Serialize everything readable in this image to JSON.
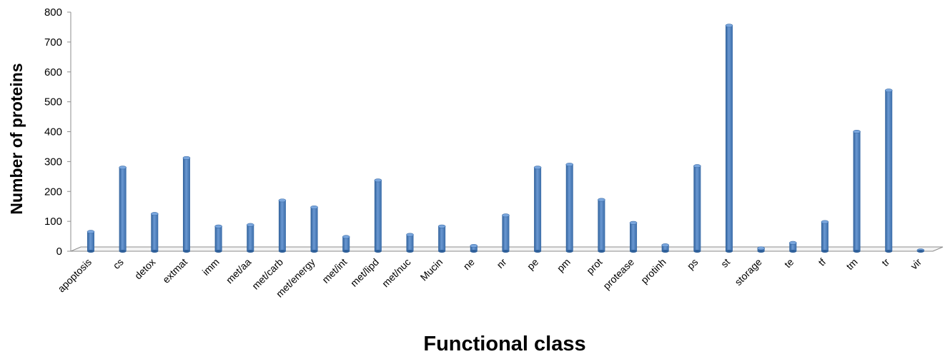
{
  "chart_data": {
    "type": "bar",
    "xlabel": "Functional class",
    "ylabel": "Number of proteins",
    "ylim": [
      0,
      800
    ],
    "yticks": [
      0,
      100,
      200,
      300,
      400,
      500,
      600,
      700,
      800
    ],
    "grid": false,
    "categories": [
      "apoptosis",
      "cs",
      "detox",
      "extmat",
      "imm",
      "met/aa",
      "met/carb",
      "met/energy",
      "met/int",
      "met/lipd",
      "met/nuc",
      "Mucin",
      "ne",
      "nr",
      "pe",
      "pm",
      "prot",
      "protease",
      "protinh",
      "ps",
      "st",
      "storage",
      "te",
      "tf",
      "tm",
      "tr",
      "vir"
    ],
    "values": [
      65,
      280,
      125,
      312,
      83,
      88,
      170,
      147,
      48,
      237,
      55,
      83,
      18,
      120,
      280,
      290,
      172,
      95,
      20,
      285,
      755,
      10,
      28,
      98,
      400,
      538,
      3
    ],
    "bar_color": "#4F81BD"
  }
}
